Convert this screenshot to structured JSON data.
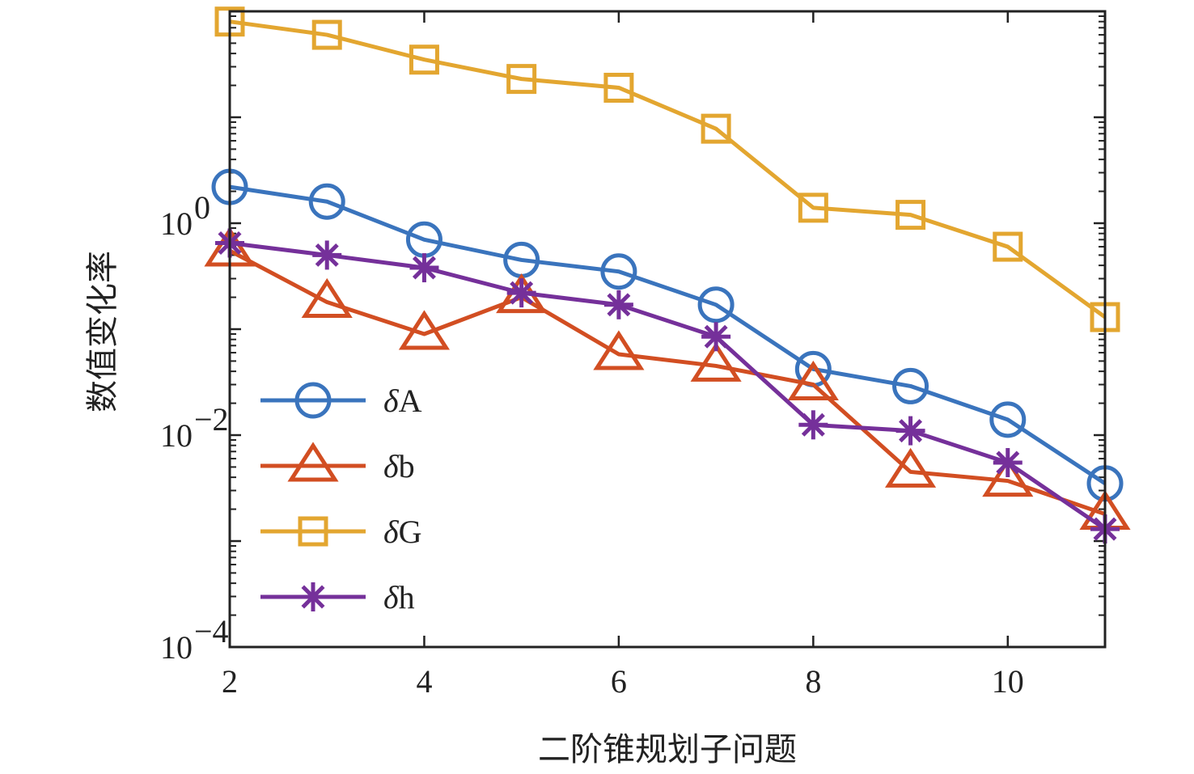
{
  "chart_data": {
    "type": "line",
    "title": "",
    "xlabel": "二阶锥规划子问题",
    "ylabel": "数值变化率",
    "x": [
      2,
      3,
      4,
      5,
      6,
      7,
      8,
      9,
      10,
      11
    ],
    "xlim": [
      2,
      11
    ],
    "ylim": [
      0.0001,
      100
    ],
    "yscale": "log",
    "x_ticks": [
      2,
      4,
      6,
      8,
      10
    ],
    "x_tick_labels": [
      "2",
      "4",
      "6",
      "8",
      "10"
    ],
    "y_ticks": [
      0.0001,
      0.01,
      1
    ],
    "y_tick_labels": [
      {
        "base": "10",
        "exp": "−4"
      },
      {
        "base": "10",
        "exp": "−2"
      },
      {
        "base": "10",
        "exp": "0"
      }
    ],
    "legend_position": "lower-left",
    "series": [
      {
        "name": "δA",
        "symbol": "δ",
        "suffix": "A",
        "marker": "circle",
        "color": "#3a74bd",
        "values": [
          2.2,
          1.6,
          0.7,
          0.45,
          0.35,
          0.17,
          0.042,
          0.029,
          0.014,
          0.0035
        ]
      },
      {
        "name": "δb",
        "symbol": "δ",
        "suffix": "b",
        "marker": "triangle",
        "color": "#d24e22",
        "values": [
          0.55,
          0.18,
          0.09,
          0.2,
          0.058,
          0.045,
          0.03,
          0.0045,
          0.0037,
          0.0018
        ]
      },
      {
        "name": "δG",
        "symbol": "δ",
        "suffix": "G",
        "marker": "square",
        "color": "#e3a630",
        "values": [
          80,
          60,
          35,
          23,
          19,
          7.8,
          1.4,
          1.2,
          0.6,
          0.13
        ]
      },
      {
        "name": "δh",
        "symbol": "δ",
        "suffix": "h",
        "marker": "asterisk",
        "color": "#75309a",
        "values": [
          0.65,
          0.5,
          0.38,
          0.22,
          0.17,
          0.085,
          0.0125,
          0.011,
          0.0055,
          0.0013
        ]
      }
    ]
  }
}
